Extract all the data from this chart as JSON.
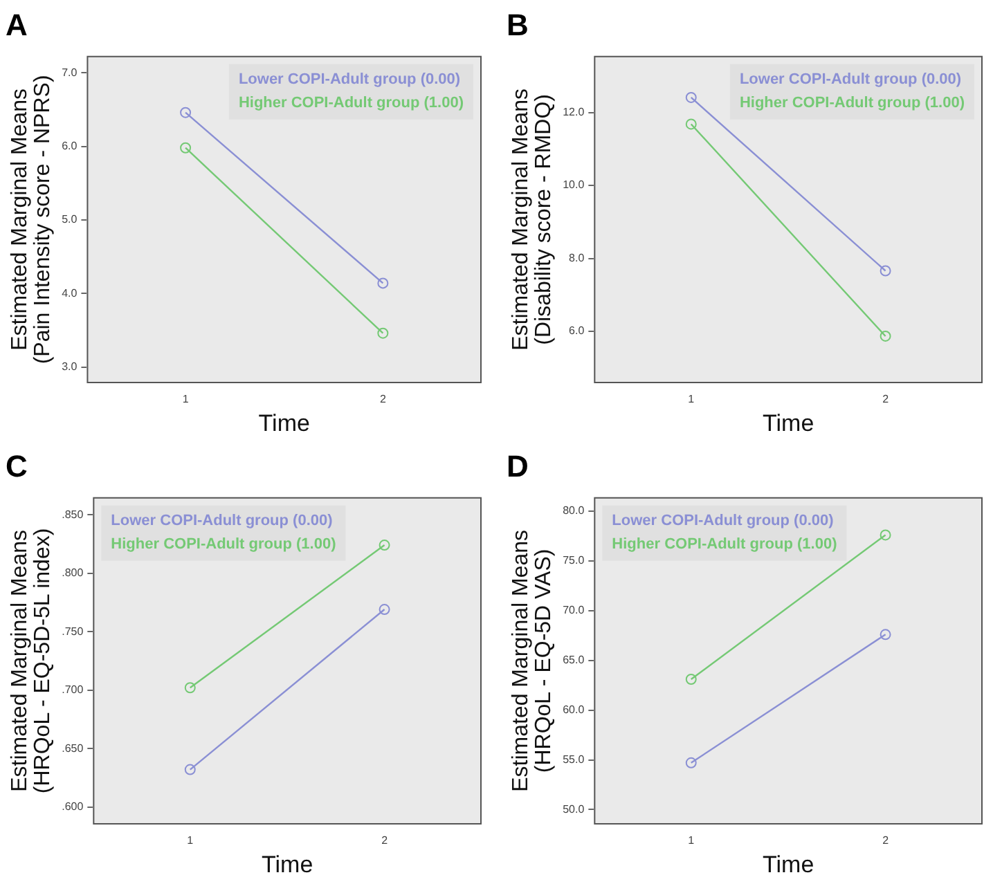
{
  "chart_data": [
    {
      "type": "line",
      "title": "A",
      "xlabel": "Time",
      "ylabel": "Estimated Marginal Means\n(Pain Intensity score - NPRS)",
      "categories": [
        "1",
        "2"
      ],
      "ylim": [
        2.78,
        7.23
      ],
      "yticks": [
        {
          "value": 3,
          "label": "3.0"
        },
        {
          "value": 4,
          "label": "4.0"
        },
        {
          "value": 5,
          "label": "5.0"
        },
        {
          "value": 6,
          "label": "6.0"
        },
        {
          "value": 7,
          "label": "7.0"
        }
      ],
      "grid": false,
      "legend": "top right",
      "marker": "circle",
      "line_style": "solid",
      "series": [
        {
          "name": "Lower COPI-Adult group (0.00)",
          "color": "#8a8fd4",
          "values": [
            6.46,
            4.14
          ]
        },
        {
          "name": "Higher COPI-Adult group (1.00)",
          "color": "#74c974",
          "values": [
            5.98,
            3.46
          ]
        }
      ]
    },
    {
      "type": "line",
      "title": "B",
      "xlabel": "Time",
      "ylabel": "Estimated Marginal Means\n(Disability score - RMDQ)",
      "categories": [
        "1",
        "2"
      ],
      "ylim": [
        4.58,
        13.55
      ],
      "yticks": [
        {
          "value": 6,
          "label": "6.0"
        },
        {
          "value": 8,
          "label": "8.0"
        },
        {
          "value": 10,
          "label": "10.0"
        },
        {
          "value": 12,
          "label": "12.0"
        }
      ],
      "grid": false,
      "legend": "top right",
      "marker": "circle",
      "line_style": "solid",
      "series": [
        {
          "name": "Lower COPI-Adult group (0.00)",
          "color": "#8a8fd4",
          "values": [
            12.41,
            7.66
          ]
        },
        {
          "name": "Higher COPI-Adult group (1.00)",
          "color": "#74c974",
          "values": [
            11.68,
            5.87
          ]
        }
      ]
    },
    {
      "type": "line",
      "title": "C",
      "xlabel": "Time",
      "ylabel": "Estimated Marginal Means\n(HRQoL - EQ-5D-5L index)",
      "categories": [
        "1",
        "2"
      ],
      "ylim": [
        0.585,
        0.865
      ],
      "yticks": [
        {
          "value": 0.6,
          "label": ".600"
        },
        {
          "value": 0.65,
          "label": ".650"
        },
        {
          "value": 0.7,
          "label": ".700"
        },
        {
          "value": 0.75,
          "label": ".750"
        },
        {
          "value": 0.8,
          "label": ".800"
        },
        {
          "value": 0.85,
          "label": ".850"
        }
      ],
      "grid": false,
      "legend": "top left",
      "marker": "circle",
      "line_style": "solid",
      "series": [
        {
          "name": "Lower COPI-Adult group (0.00)",
          "color": "#8a8fd4",
          "values": [
            0.632,
            0.769
          ]
        },
        {
          "name": "Higher COPI-Adult group (1.00)",
          "color": "#74c974",
          "values": [
            0.702,
            0.824
          ]
        }
      ]
    },
    {
      "type": "line",
      "title": "D",
      "xlabel": "Time",
      "ylabel": "Estimated Marginal Means\n(HRQoL - EQ-5D VAS)",
      "categories": [
        "1",
        "2"
      ],
      "ylim": [
        48.5,
        81.4
      ],
      "yticks": [
        {
          "value": 50,
          "label": "50.0"
        },
        {
          "value": 55,
          "label": "55.0"
        },
        {
          "value": 60,
          "label": "60.0"
        },
        {
          "value": 65,
          "label": "65.0"
        },
        {
          "value": 70,
          "label": "70.0"
        },
        {
          "value": 75,
          "label": "75.0"
        },
        {
          "value": 80,
          "label": "80.0"
        }
      ],
      "grid": false,
      "legend": "top left",
      "marker": "circle",
      "line_style": "solid",
      "series": [
        {
          "name": "Lower COPI-Adult group (0.00)",
          "color": "#8a8fd4",
          "values": [
            54.7,
            67.6
          ]
        },
        {
          "name": "Higher COPI-Adult group (1.00)",
          "color": "#74c974",
          "values": [
            63.1,
            77.6
          ]
        }
      ]
    }
  ]
}
